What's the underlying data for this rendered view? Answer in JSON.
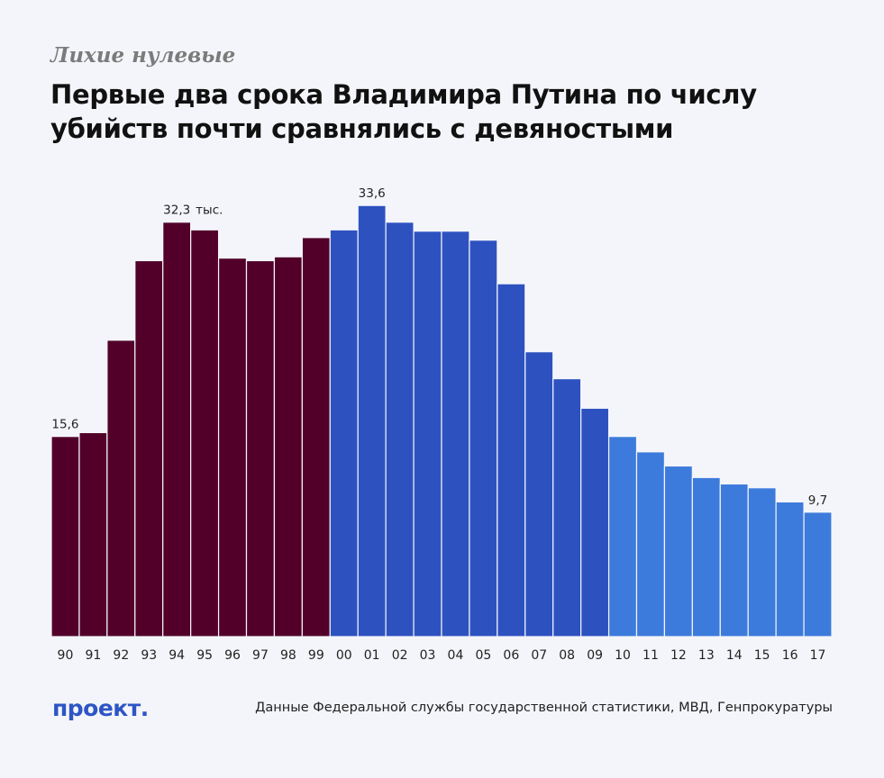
{
  "header": {
    "kicker": "Лихие нулевые",
    "title": "Первые два срока Владимира Путина по числу убийств почти сравнялись с девяностыми"
  },
  "footer": {
    "logo": "проект.",
    "source": "Данные Федеральной службы государственной статистики, МВД, Генпрокуратуры"
  },
  "colors": {
    "nineties": "#52002a",
    "putin_2000s": "#2d52c0",
    "later": "#3c7bdb",
    "background": "#f4f5fa"
  },
  "chart_data": {
    "type": "bar",
    "title": "Первые два срока Владимира Путина по числу убийств почти сравнялись с девяностыми",
    "ylabel": "тыс.",
    "unit": "тыс.",
    "ylim": [
      0,
      50
    ],
    "grid": false,
    "categories": [
      "90",
      "91",
      "92",
      "93",
      "94",
      "95",
      "96",
      "97",
      "98",
      "99",
      "00",
      "01",
      "02",
      "03",
      "04",
      "05",
      "06",
      "07",
      "08",
      "09",
      "10",
      "11",
      "12",
      "13",
      "14",
      "15",
      "16",
      "17"
    ],
    "values": [
      15.6,
      15.9,
      23.1,
      29.3,
      32.3,
      31.7,
      29.5,
      29.3,
      29.6,
      31.1,
      31.7,
      33.6,
      32.3,
      31.6,
      31.6,
      30.9,
      27.5,
      22.2,
      20.1,
      17.8,
      15.6,
      14.4,
      13.3,
      12.4,
      11.9,
      11.6,
      10.5,
      9.7
    ],
    "groups": [
      {
        "name": "nineties",
        "from": "90",
        "to": "99",
        "color": "#52002a"
      },
      {
        "name": "putin_2000s",
        "from": "00",
        "to": "09",
        "color": "#2d52c0"
      },
      {
        "name": "later",
        "from": "10",
        "to": "17",
        "color": "#3c7bdb"
      }
    ],
    "data_labels": [
      {
        "category": "90",
        "text": "15,6"
      },
      {
        "category": "94",
        "text": "32,3",
        "suffix": "тыс."
      },
      {
        "category": "01",
        "text": "33,6"
      },
      {
        "category": "17",
        "text": "9,7"
      }
    ]
  }
}
